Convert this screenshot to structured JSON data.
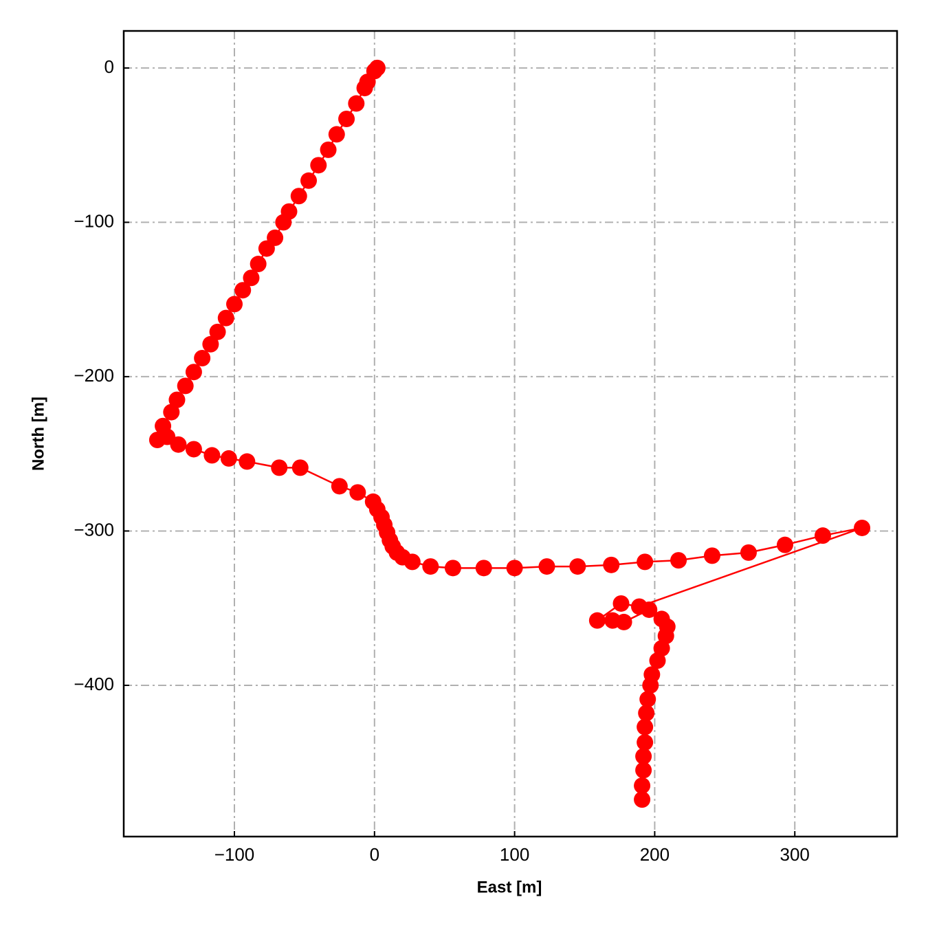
{
  "chart_data": {
    "type": "line",
    "xlabel": "East [m]",
    "ylabel": "North [m]",
    "color": "#ff0000",
    "grid": true,
    "markers": true,
    "x": [
      2,
      0,
      -5,
      -7,
      -13,
      -20,
      -27,
      -33,
      -40,
      -47,
      -54,
      -61,
      -65,
      -71,
      -77,
      -83,
      -88,
      -94,
      -100,
      -106,
      -112,
      -117,
      -123,
      -129,
      -135,
      -141,
      -145,
      -151,
      -155,
      -148,
      -140,
      -129,
      -116,
      -104,
      -91,
      -68,
      -53,
      -25,
      -12,
      -1,
      2,
      5,
      7,
      9,
      11,
      13,
      16,
      20,
      27,
      40,
      56,
      78,
      100,
      123,
      145,
      169,
      193,
      217,
      241,
      267,
      293,
      320,
      348,
      189,
      176,
      159,
      170,
      178,
      196,
      205,
      209,
      208,
      205,
      202,
      198,
      197,
      195,
      194,
      193,
      193,
      192,
      192,
      191,
      191
    ],
    "values": [
      0,
      -2,
      -9,
      -13,
      -23,
      -33,
      -43,
      -53,
      -63,
      -73,
      -83,
      -93,
      -100,
      -110,
      -117,
      -127,
      -136,
      -144,
      -153,
      -162,
      -171,
      -179,
      -188,
      -197,
      -206,
      -215,
      -223,
      -232,
      -241,
      -239,
      -244,
      -247,
      -251,
      -253,
      -255,
      -259,
      -259,
      -271,
      -275,
      -281,
      -286,
      -291,
      -296,
      -301,
      -306,
      -310,
      -314,
      -317,
      -320,
      -323,
      -324,
      -324,
      -324,
      -323,
      -323,
      -322,
      -320,
      -319,
      -316,
      -314,
      -309,
      -303,
      -298,
      -349,
      -347,
      -358,
      -358,
      -359,
      -351,
      -357,
      -362,
      -368,
      -376,
      -384,
      -393,
      -400,
      -409,
      -418,
      -427,
      -437,
      -446,
      -455,
      -465,
      -474
    ],
    "xlim": [
      -179,
      373
    ],
    "ylim": [
      -498,
      24
    ],
    "xticks": [
      {
        "value": -100,
        "label": "−100"
      },
      0,
      100,
      200,
      300
    ],
    "yticks": [
      0,
      {
        "value": -100,
        "label": "−100"
      },
      {
        "value": -200,
        "label": "−200"
      },
      {
        "value": -300,
        "label": "−300"
      },
      {
        "value": -400,
        "label": "−400"
      }
    ]
  }
}
